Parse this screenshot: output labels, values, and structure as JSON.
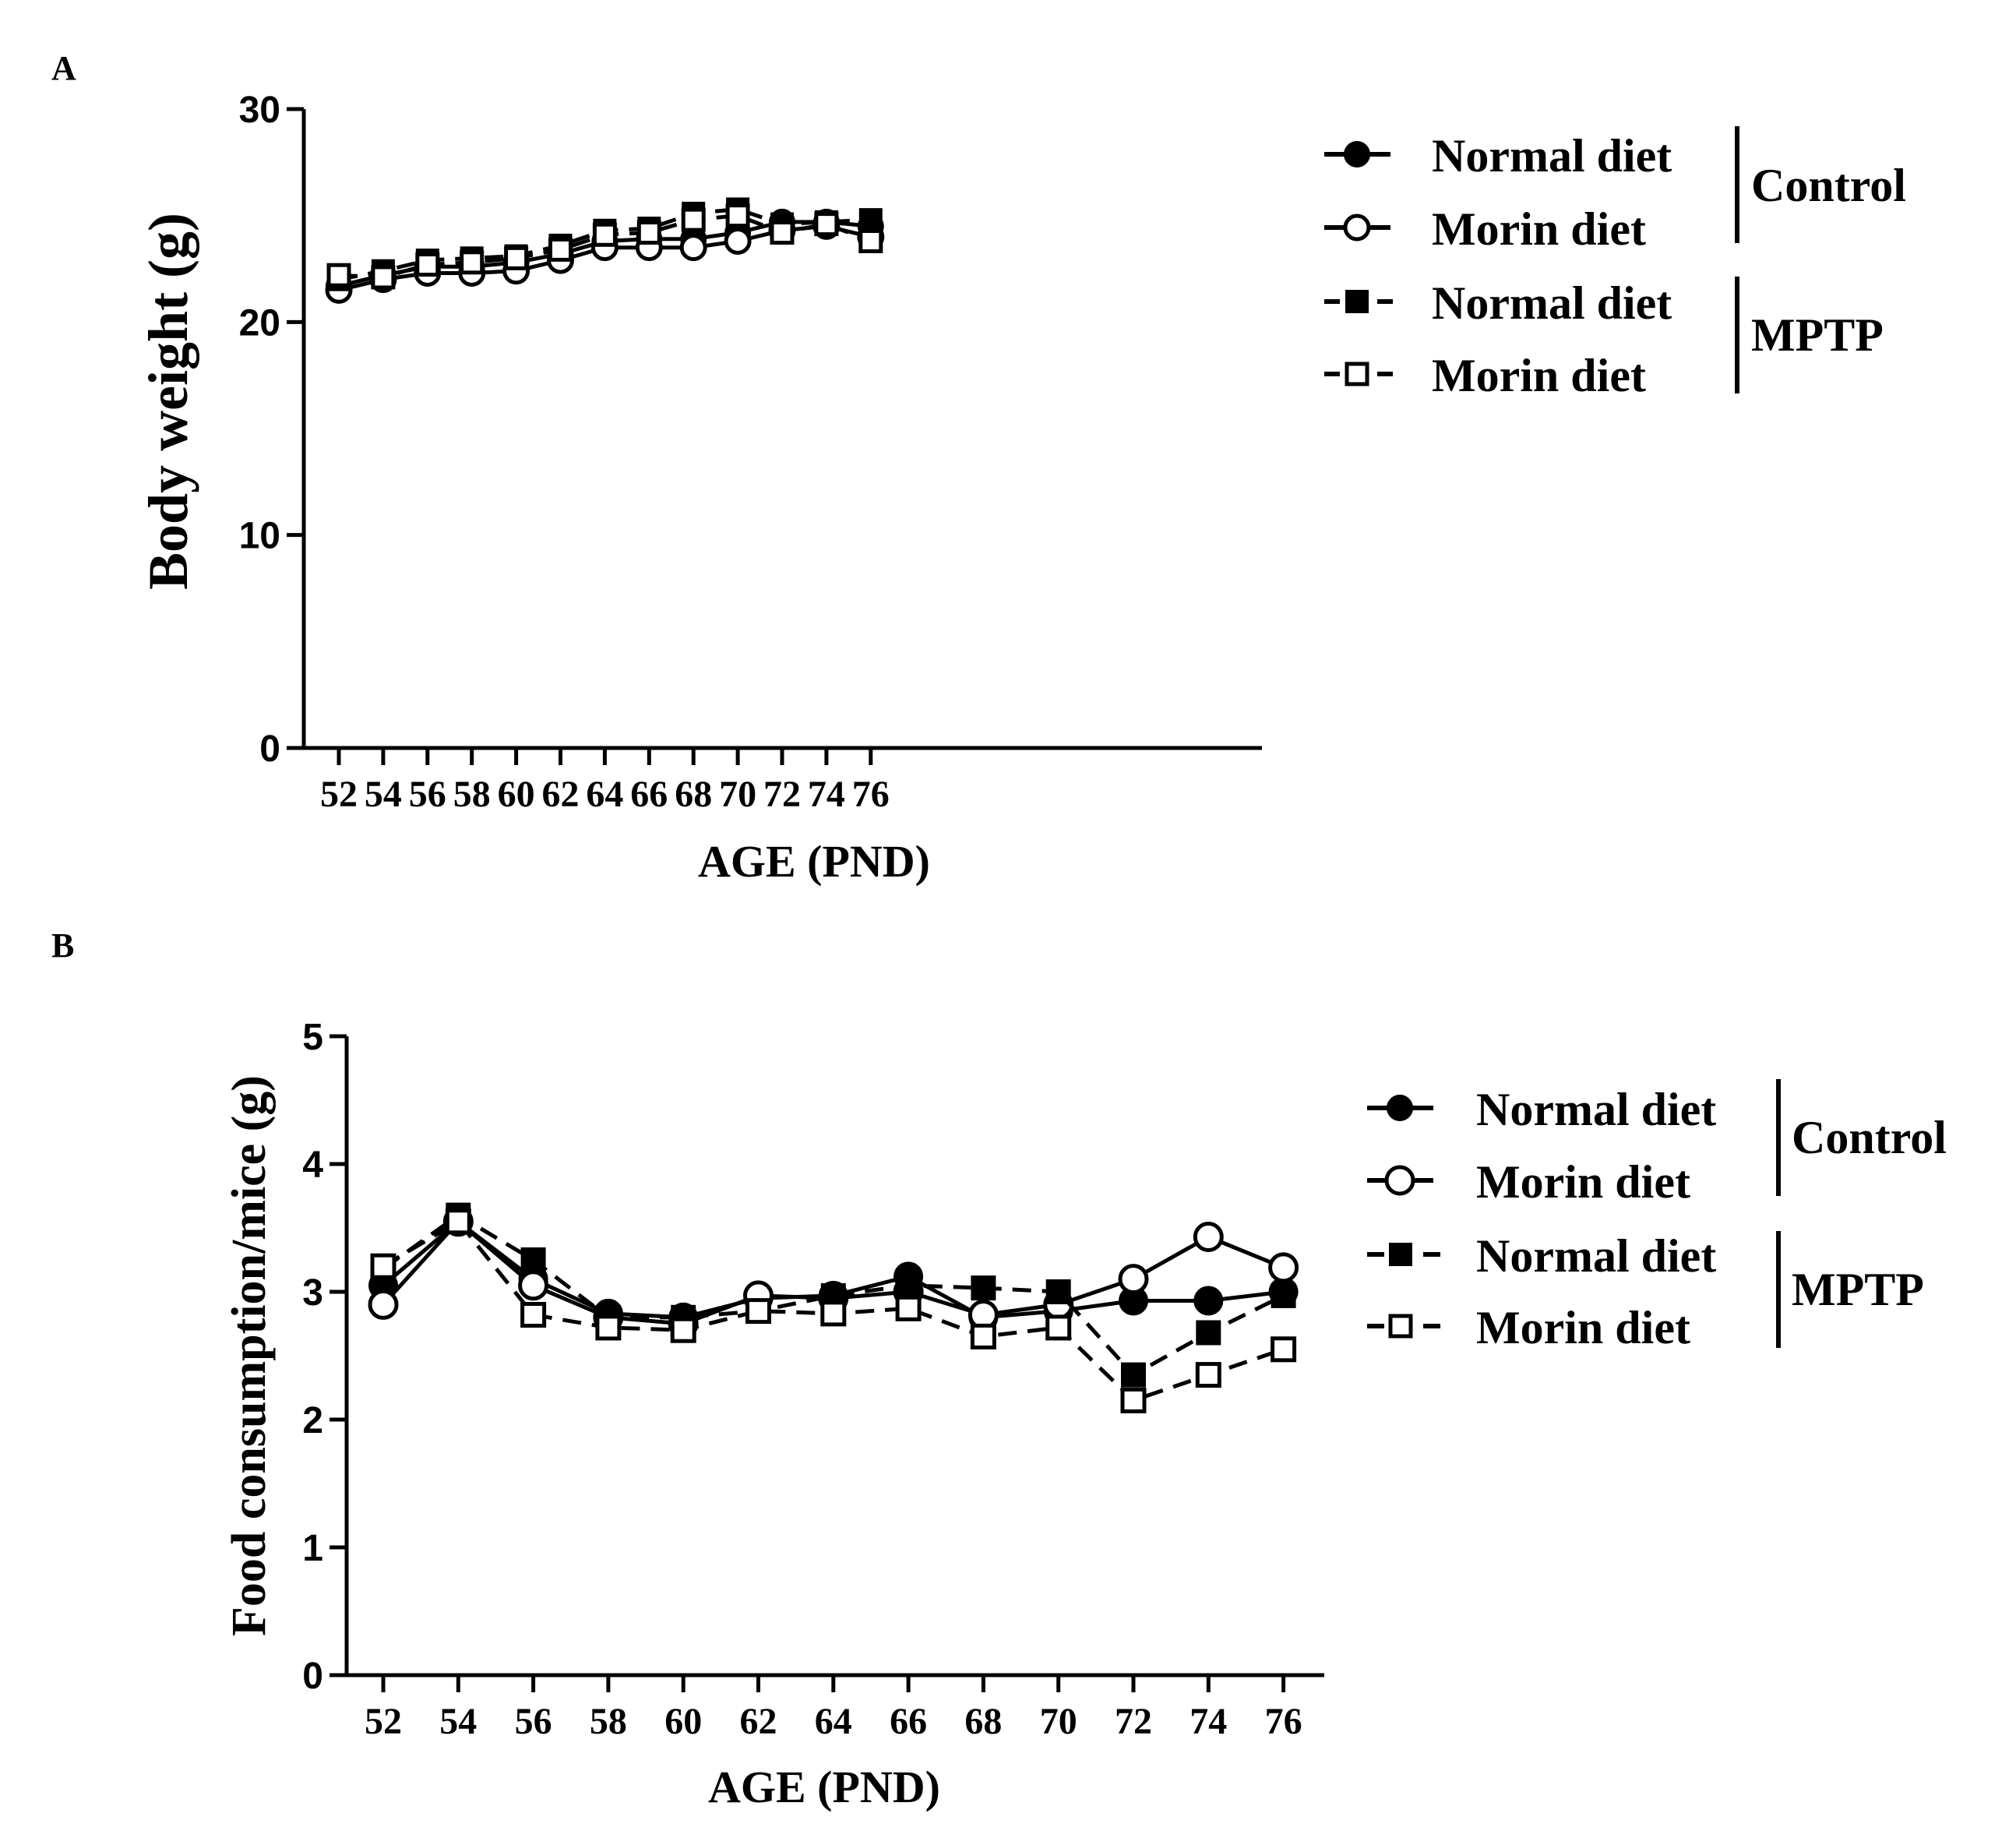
{
  "figure_labels": {
    "panel_a": "A",
    "panel_b": "B"
  },
  "colors": {
    "ink": "#000000",
    "background": "#ffffff"
  },
  "chart_data": [
    {
      "id": "A",
      "type": "line",
      "title": "",
      "xlabel": "AGE (PND)",
      "ylabel": "Body weight (g)",
      "ylim": [
        0,
        30
      ],
      "yticks": [
        0,
        10,
        20,
        30
      ],
      "categories": [
        "52",
        "54",
        "56",
        "58",
        "60",
        "62",
        "64",
        "66",
        "68",
        "70",
        "72",
        "74",
        "76"
      ],
      "grid": false,
      "legend_position": "right",
      "legend": {
        "entries": [
          "Normal diet",
          "Morin diet",
          "Normal diet",
          "Morin diet"
        ],
        "groups": [
          "Control",
          "MPTP"
        ]
      },
      "series": [
        {
          "name": "Normal diet",
          "group": "Control",
          "marker": "filled-circle",
          "line": "solid",
          "values": [
            21.7,
            22.2,
            22.6,
            22.6,
            22.8,
            23.2,
            23.8,
            23.9,
            23.9,
            24.2,
            24.7,
            24.7,
            24.5
          ]
        },
        {
          "name": "Morin diet",
          "group": "Control",
          "marker": "open-circle",
          "line": "solid",
          "values": [
            21.5,
            22.0,
            22.3,
            22.3,
            22.4,
            22.9,
            23.5,
            23.5,
            23.5,
            23.8,
            24.3,
            24.5,
            24.0
          ]
        },
        {
          "name": "Normal diet",
          "group": "MPTP",
          "marker": "filled-square",
          "line": "dashed",
          "values": [
            22.0,
            22.4,
            22.9,
            23.0,
            23.1,
            23.6,
            24.3,
            24.4,
            25.1,
            25.3,
            24.6,
            24.7,
            24.8
          ]
        },
        {
          "name": "Morin diet",
          "group": "MPTP",
          "marker": "open-square",
          "line": "dashed",
          "values": [
            22.2,
            22.1,
            22.7,
            22.8,
            23.0,
            23.4,
            24.1,
            24.2,
            24.8,
            25.0,
            24.2,
            24.6,
            23.8
          ]
        }
      ]
    },
    {
      "id": "B",
      "type": "line",
      "title": "",
      "xlabel": "AGE (PND)",
      "ylabel": "Food consumption/mice (g)",
      "ylim": [
        0,
        5
      ],
      "yticks": [
        0,
        1,
        2,
        3,
        4,
        5
      ],
      "categories": [
        "52",
        "54",
        "56",
        "58",
        "60",
        "62",
        "64",
        "66",
        "68",
        "70",
        "72",
        "74",
        "76"
      ],
      "grid": false,
      "legend_position": "right",
      "legend": {
        "entries": [
          "Normal diet",
          "Morin diet",
          "Normal diet",
          "Morin diet"
        ],
        "groups": [
          "Control",
          "MPTP"
        ]
      },
      "series": [
        {
          "name": "Normal diet",
          "group": "Control",
          "marker": "filled-circle",
          "line": "solid",
          "values": [
            3.05,
            3.55,
            3.1,
            2.83,
            2.8,
            2.95,
            2.97,
            3.12,
            2.8,
            2.85,
            2.93,
            2.93,
            3.0
          ]
        },
        {
          "name": "Morin diet",
          "group": "Control",
          "marker": "open-circle",
          "line": "solid",
          "values": [
            2.9,
            3.55,
            3.05,
            2.8,
            2.75,
            2.97,
            2.95,
            3.0,
            2.82,
            2.9,
            3.1,
            3.43,
            3.19
          ]
        },
        {
          "name": "Normal diet",
          "group": "MPTP",
          "marker": "filled-square",
          "line": "dashed",
          "values": [
            3.18,
            3.6,
            3.25,
            2.8,
            2.8,
            2.85,
            2.97,
            3.05,
            3.03,
            3.0,
            2.35,
            2.68,
            2.97
          ]
        },
        {
          "name": "Morin diet",
          "group": "MPTP",
          "marker": "open-square",
          "line": "dashed",
          "values": [
            3.2,
            3.55,
            2.82,
            2.72,
            2.7,
            2.85,
            2.83,
            2.87,
            2.65,
            2.72,
            2.15,
            2.35,
            2.55
          ]
        }
      ]
    }
  ]
}
